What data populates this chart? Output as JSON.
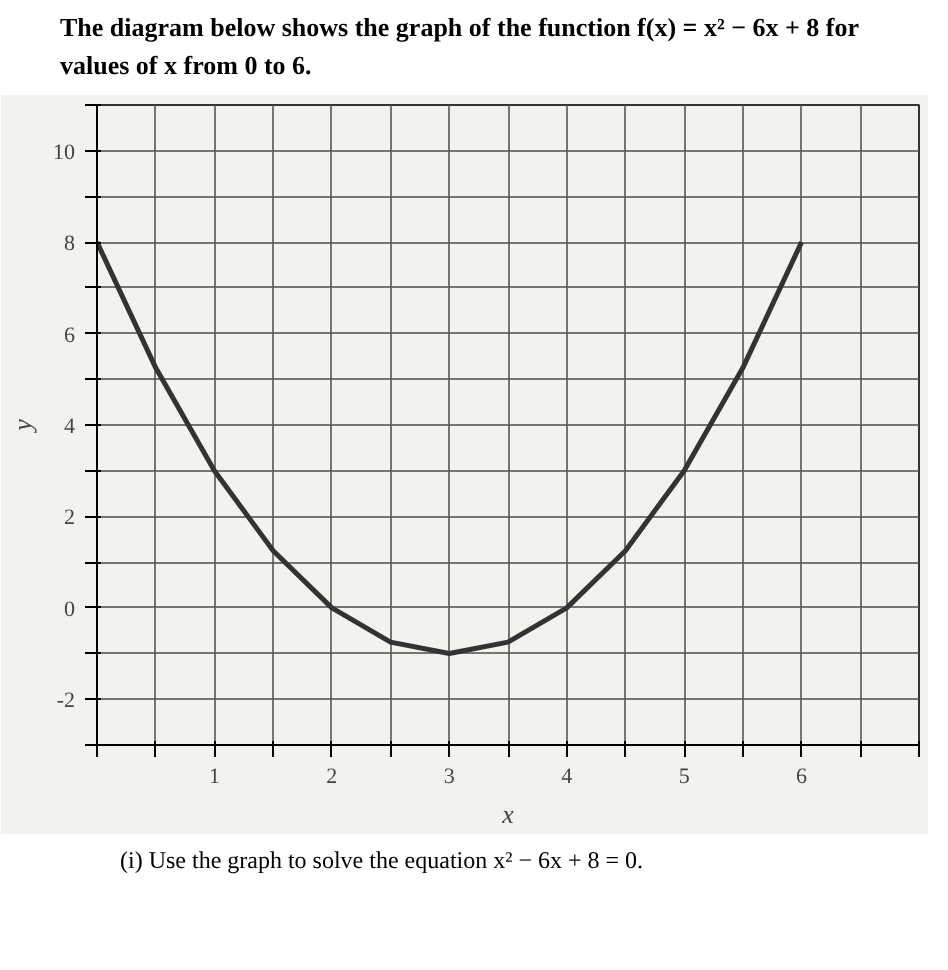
{
  "chart_data": {
    "type": "line",
    "title": "The diagram below shows the graph of the function f(x) = x² − 6x + 8 for values of x from 0 to 6.",
    "xlabel": "x",
    "ylabel": "y",
    "x": [
      0,
      0.5,
      1,
      1.5,
      2,
      2.5,
      3,
      3.5,
      4,
      4.5,
      5,
      5.5,
      6
    ],
    "series": [
      {
        "color": "#333333",
        "values": [
          8,
          5.25,
          3,
          1.25,
          0,
          -0.75,
          -1,
          -0.75,
          0,
          1.25,
          3,
          5.25,
          8
        ]
      }
    ],
    "xlim": [
      0,
      7
    ],
    "ylim": [
      -3,
      11
    ],
    "xticks": [
      {
        "value": 0,
        "label": null
      },
      {
        "value": 0.5,
        "label": null
      },
      1,
      {
        "value": 1.5,
        "label": null
      },
      2,
      {
        "value": 2.5,
        "label": null
      },
      3,
      {
        "value": 3.5,
        "label": null
      },
      4,
      {
        "value": 4.5,
        "label": null
      },
      5,
      {
        "value": 5.5,
        "label": null
      },
      6,
      {
        "value": 6.5,
        "label": null
      },
      {
        "value": 7,
        "label": null
      }
    ],
    "yticks": [
      {
        "value": -3,
        "label": null
      },
      -2,
      {
        "value": -1,
        "label": null
      },
      0,
      {
        "value": 1,
        "label": null
      },
      2,
      {
        "value": 3,
        "label": null
      },
      4,
      {
        "value": 5,
        "label": null
      },
      6,
      {
        "value": 7,
        "label": null
      },
      8,
      {
        "value": 9,
        "label": null
      },
      10,
      {
        "value": 11,
        "label": null
      }
    ],
    "grid": true,
    "marker": "none",
    "line_style": "solid",
    "annotations": [
      "(i)    Use the graph to solve the equation x² − 6x + 8 = 0."
    ]
  }
}
